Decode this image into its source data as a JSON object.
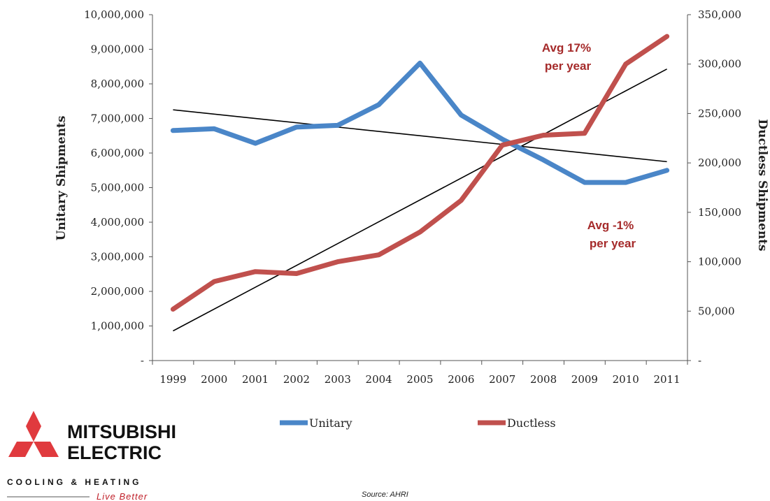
{
  "chart_data": {
    "type": "line",
    "title": "",
    "xlabel": "",
    "ylabel": "Unitary Shipments",
    "y2label": "Ductless Shipments",
    "categories": [
      "1999",
      "2000",
      "2001",
      "2002",
      "2003",
      "2004",
      "2005",
      "2006",
      "2007",
      "2008",
      "2009",
      "2010",
      "2011"
    ],
    "ylim": [
      0,
      10000000
    ],
    "y2lim": [
      0,
      350000
    ],
    "yticks": [
      "-",
      "1,000,000",
      "2,000,000",
      "3,000,000",
      "4,000,000",
      "5,000,000",
      "6,000,000",
      "7,000,000",
      "8,000,000",
      "9,000,000",
      "10,000,000"
    ],
    "y2ticks": [
      "-",
      "50,000",
      "100,000",
      "150,000",
      "200,000",
      "250,000",
      "300,000",
      "350,000"
    ],
    "series": [
      {
        "name": "Unitary",
        "axis": "left",
        "color": "#4a86c8",
        "x": [
          1999.0,
          2000.0,
          2001.0,
          2002.0,
          2003.0,
          2004.0,
          2005.0,
          2006.0,
          2007.0,
          2008.0,
          2009.0,
          2010.0,
          2011.0
        ],
        "values": [
          6650000,
          6700000,
          6280000,
          6750000,
          6800000,
          7400000,
          8600000,
          7100000,
          6400000,
          5800000,
          5150000,
          5150000,
          5500000
        ]
      },
      {
        "name": "Ductless",
        "axis": "right",
        "color": "#c0504d",
        "x": [
          1999.0,
          2000.0,
          2001.0,
          2002.0,
          2003.0,
          2004.0,
          2005.0,
          2006.0,
          2007.0,
          2008.0,
          2009.0,
          2010.0,
          2011.0
        ],
        "values": [
          52000,
          80000,
          90000,
          88000,
          100000,
          107000,
          130000,
          162000,
          218000,
          228000,
          230000,
          300000,
          328000
        ]
      }
    ],
    "trendlines": [
      {
        "of": "Unitary",
        "axis": "left",
        "x": [
          1999,
          2011
        ],
        "values": [
          7250000,
          5750000
        ],
        "color": "#000000"
      },
      {
        "of": "Ductless",
        "axis": "right",
        "x": [
          1999,
          2011
        ],
        "values": [
          30000,
          295000
        ],
        "color": "#000000"
      }
    ],
    "annotations": [
      {
        "lines": [
          "Avg 17%",
          "per year"
        ],
        "color": "#a52a2a"
      },
      {
        "lines": [
          "Avg -1%",
          "per year"
        ],
        "color": "#a52a2a"
      }
    ],
    "source": "Source: AHRI",
    "grid": false,
    "legend_position": "bottom"
  },
  "logo": {
    "name_line1": "MITSUBISHI",
    "name_line2": "ELECTRIC",
    "subtitle": "COOLING & HEATING",
    "tagline": "Live Better",
    "color": "#e03a3e"
  }
}
